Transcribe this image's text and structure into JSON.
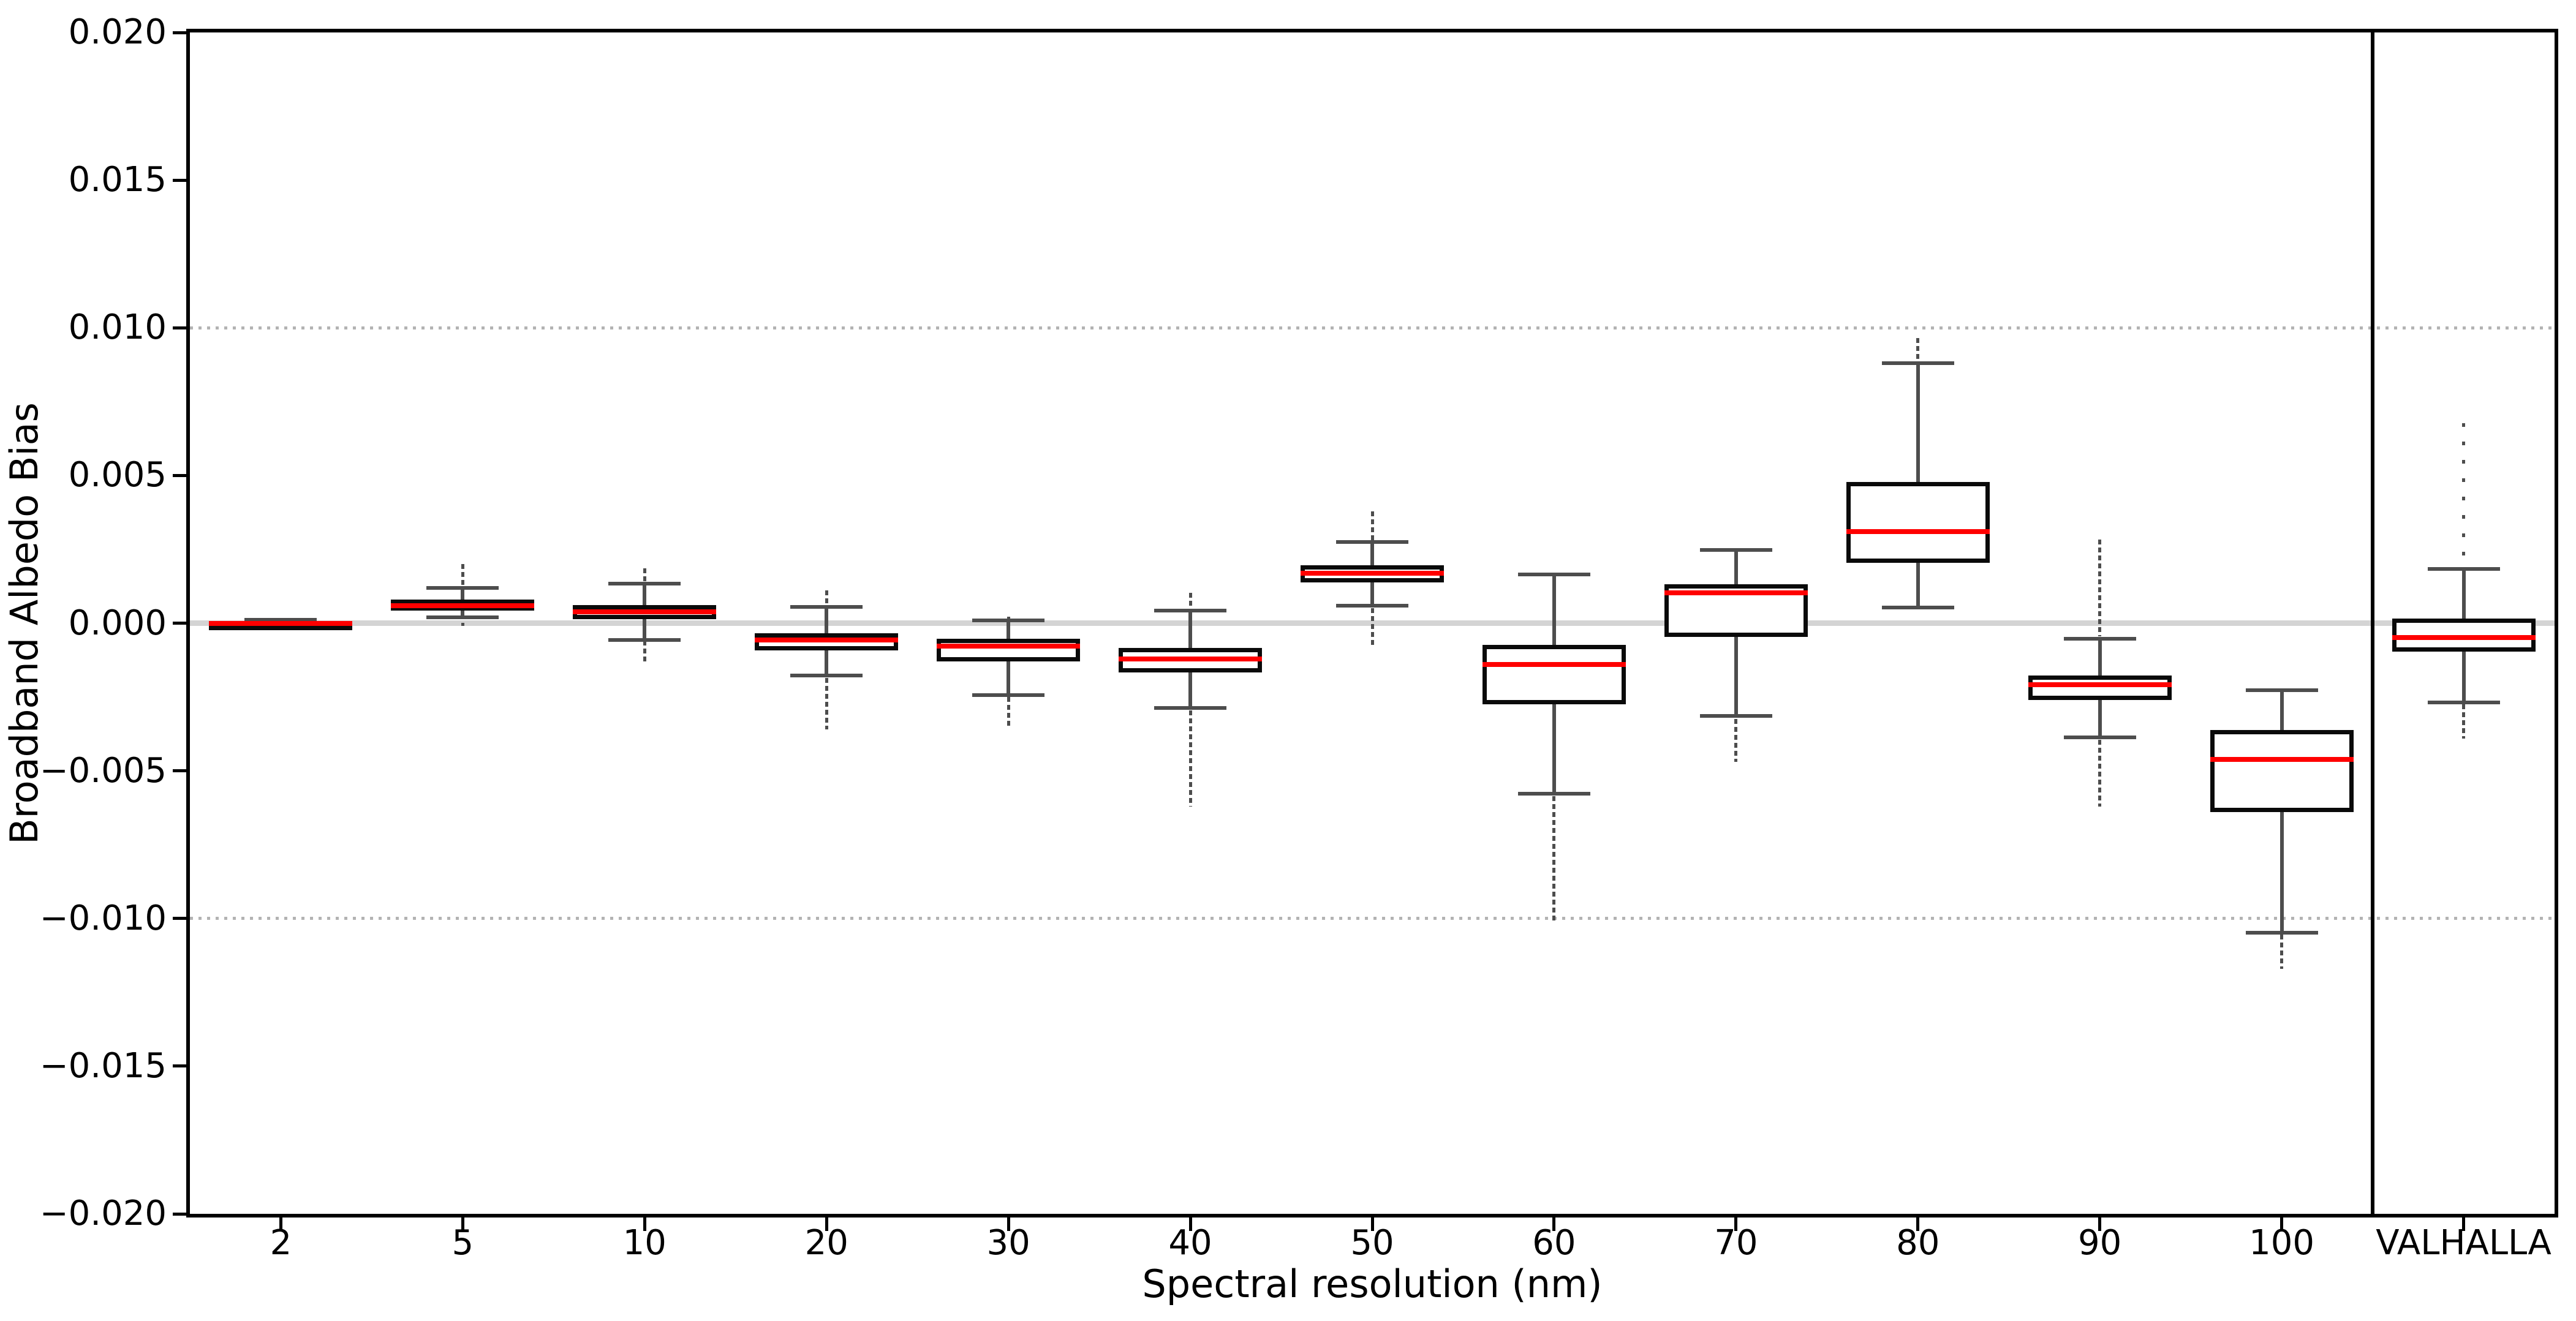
{
  "chart_data": {
    "type": "boxplot",
    "title": "",
    "xlabel": "Spectral resolution (nm)",
    "ylabel": "Broadband Albedo Bias",
    "ylim": [
      -0.02,
      0.02
    ],
    "yticks": [
      0.02,
      0.015,
      0.01,
      0.005,
      0.0,
      -0.005,
      -0.01,
      -0.015,
      -0.02
    ],
    "ytick_labels": [
      "0.020",
      "0.015",
      "0.010",
      "0.005",
      "0.000",
      "−0.005",
      "−0.010",
      "−0.015",
      "−0.020"
    ],
    "categories": [
      "2",
      "5",
      "10",
      "20",
      "30",
      "40",
      "50",
      "60",
      "70",
      "80",
      "90",
      "100",
      "VALHALLA"
    ],
    "grid": "dotted horizontal lines at +0.010 and -0.010, solid light gray line at 0.000",
    "reference_lines": {
      "zero": 0.0,
      "dotted": [
        0.01,
        -0.01
      ]
    },
    "separator_before_last_category": true,
    "legend": "none",
    "boxes": [
      {
        "label": "2",
        "whislo": -0.00012,
        "q1": -6e-05,
        "med": 0.0,
        "q3": 6e-05,
        "whishi": 0.00012,
        "fliers_above": null,
        "fliers_below": [
          -0.00012,
          -0.00022
        ],
        "sparse_above": false
      },
      {
        "label": "5",
        "whislo": 0.0002,
        "q1": 0.00043,
        "med": 0.0006,
        "q3": 0.0008,
        "whishi": 0.0012,
        "fliers_above": [
          0.0013,
          0.002
        ],
        "fliers_below": [
          2e-05,
          -0.0001
        ],
        "sparse_above": false
      },
      {
        "label": "10",
        "whislo": -0.00056,
        "q1": 0.00013,
        "med": 0.00039,
        "q3": 0.00062,
        "whishi": 0.00134,
        "fliers_above": [
          0.0014,
          0.00185
        ],
        "fliers_below": [
          -0.0006,
          -0.0013
        ],
        "sparse_above": false
      },
      {
        "label": "20",
        "whislo": -0.00178,
        "q1": -0.00093,
        "med": -0.00058,
        "q3": -0.00034,
        "whishi": 0.00054,
        "fliers_above": [
          0.0006,
          0.0011
        ],
        "fliers_below": [
          -0.00185,
          -0.0036
        ],
        "sparse_above": false
      },
      {
        "label": "30",
        "whislo": -0.00243,
        "q1": -0.0013,
        "med": -0.00078,
        "q3": -0.00052,
        "whishi": 0.0001,
        "fliers_above": [
          0.00012,
          0.00022
        ],
        "fliers_below": [
          -0.0025,
          -0.0035
        ],
        "sparse_above": false
      },
      {
        "label": "40",
        "whislo": -0.00288,
        "q1": -0.00166,
        "med": -0.00122,
        "q3": -0.00083,
        "whishi": 0.00042,
        "fliers_above": [
          0.0005,
          0.00103
        ],
        "fliers_below": [
          -0.00295,
          -0.00622
        ],
        "sparse_above": false
      },
      {
        "label": "50",
        "whislo": 0.0006,
        "q1": 0.00138,
        "med": 0.0017,
        "q3": 0.00195,
        "whishi": 0.00275,
        "fliers_above": [
          0.0028,
          0.00378
        ],
        "fliers_below": [
          0.0005,
          -0.0008
        ],
        "sparse_above": false
      },
      {
        "label": "60",
        "whislo": -0.00577,
        "q1": -0.00274,
        "med": -0.0014,
        "q3": -0.00074,
        "whishi": 0.00164,
        "fliers_above": null,
        "fliers_below": [
          -0.00585,
          -0.0101
        ],
        "sparse_above": false
      },
      {
        "label": "70",
        "whislo": -0.00314,
        "q1": -0.00046,
        "med": 0.00102,
        "q3": 0.00132,
        "whishi": 0.00247,
        "fliers_above": null,
        "fliers_below": [
          -0.00325,
          -0.0047
        ],
        "sparse_above": false
      },
      {
        "label": "80",
        "whislo": 0.00052,
        "q1": 0.00204,
        "med": 0.0031,
        "q3": 0.00477,
        "whishi": 0.00881,
        "fliers_above": [
          0.00885,
          0.00965
        ],
        "fliers_below": null,
        "sparse_above": false
      },
      {
        "label": "90",
        "whislo": -0.00386,
        "q1": -0.0026,
        "med": -0.00208,
        "q3": -0.00177,
        "whishi": -0.00052,
        "fliers_above": [
          -0.00045,
          0.00283
        ],
        "fliers_below": [
          -0.00395,
          -0.00622
        ],
        "sparse_above": false
      },
      {
        "label": "100",
        "whislo": -0.01048,
        "q1": -0.00639,
        "med": -0.00461,
        "q3": -0.00361,
        "whishi": -0.00228,
        "fliers_above": null,
        "fliers_below": [
          -0.01055,
          -0.0117
        ],
        "sparse_above": false
      },
      {
        "label": "VALHALLA",
        "whislo": -0.00268,
        "q1": -0.00096,
        "med": -0.00048,
        "q3": 0.00015,
        "whishi": 0.00183,
        "fliers_above": [
          0.0019,
          0.00678
        ],
        "fliers_below": [
          -0.00275,
          -0.0039
        ],
        "sparse_above": true
      }
    ],
    "colors": {
      "median": "#ff0000",
      "box_edge": "#0a0a0a",
      "box_fill": "#ffffff",
      "whisker": "#4d4d4d",
      "flier": "#4d4d4d",
      "zero_line": "#d4d4d4",
      "grid_dotted": "#b3b3b3",
      "separator": "#000000",
      "spine": "#000000",
      "text": "#000000",
      "background": "#ffffff"
    }
  }
}
